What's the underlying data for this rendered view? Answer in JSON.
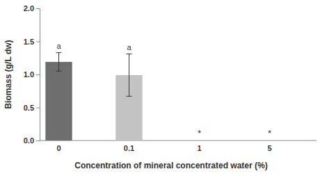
{
  "chart_data": {
    "type": "bar",
    "x_label": "Concentration of mineral concentrated water (%)",
    "y_label": "Biomass (g/L dw)",
    "categories": [
      "0",
      "0.1",
      "1",
      "5"
    ],
    "values": [
      1.19,
      0.99,
      0,
      0
    ],
    "errors": [
      0.14,
      0.32,
      null,
      null
    ],
    "annotations": [
      "a",
      "a",
      "*",
      "*"
    ],
    "colors": [
      "#6e6e6e",
      "#c3c3c3",
      "#c3c3c3",
      "#c3c3c3"
    ],
    "ylim": [
      0,
      2
    ],
    "yticks": [
      {
        "value": 0,
        "label": "0.0"
      },
      {
        "value": 0.5,
        "label": "0.5"
      },
      {
        "value": 1,
        "label": "1.0"
      },
      {
        "value": 1.5,
        "label": "1.5"
      },
      {
        "value": 2,
        "label": "2.0"
      }
    ],
    "grid": false
  }
}
